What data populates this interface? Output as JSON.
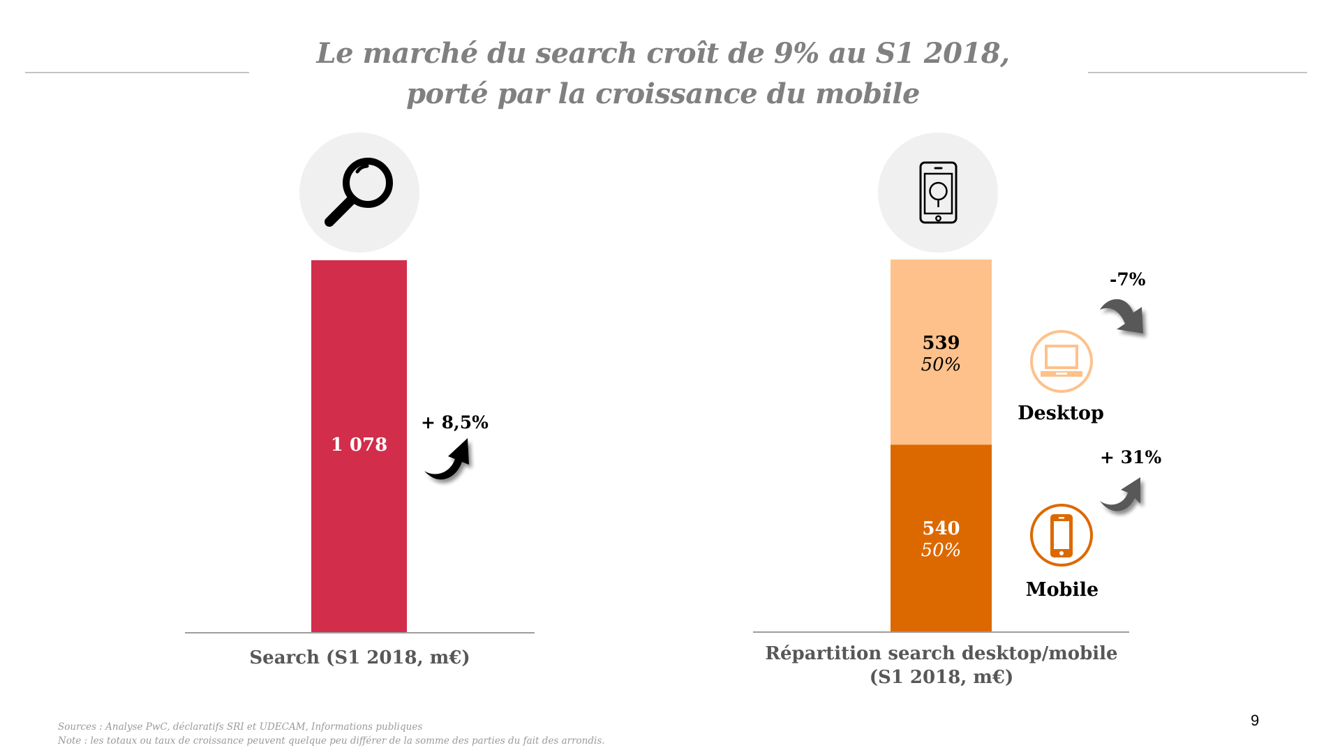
{
  "title": {
    "line1": "Le marché du search croît de 9% au S1 2018,",
    "line2": "porté par la croissance du mobile"
  },
  "colors": {
    "search_bar": "#d22d4b",
    "desktop_bar": "#fec18b",
    "mobile_bar": "#dc6900",
    "arrow_black": "#000000",
    "arrow_gray": "#595959",
    "icon_bg": "#f0f0f0",
    "desktop_icon": "#fec18b",
    "mobile_icon": "#dc6900"
  },
  "icons": {
    "left": "magnifier-icon",
    "right": "smartphone-search-icon",
    "desktop": "laptop-icon",
    "mobile": "smartphone-icon",
    "up_arrow": "curved-arrow-up-icon",
    "down_arrow": "curved-arrow-down-icon"
  },
  "chart_data": [
    {
      "type": "bar",
      "title": "Search (S1 2018, m€)",
      "xlabel": "Search (S1 2018, m€)",
      "ylabel": "",
      "categories": [
        "Search"
      ],
      "values": [
        1078
      ],
      "value_labels": [
        "1 078"
      ],
      "growth": "+ 8,5%",
      "growth_direction": "up",
      "ylim": [
        0,
        1078
      ],
      "grid": false
    },
    {
      "type": "bar",
      "stacked": true,
      "title": "Répartition search desktop/mobile (S1 2018, m€)",
      "xlabel_line1": "Répartition search desktop/mobile",
      "xlabel_line2": "(S1 2018, m€)",
      "ylabel": "",
      "categories": [
        "S1 2018"
      ],
      "series": [
        {
          "name": "Mobile",
          "values": [
            540
          ],
          "value_label": "540",
          "share": "50%",
          "growth": "+ 31%",
          "growth_direction": "up"
        },
        {
          "name": "Desktop",
          "values": [
            539
          ],
          "value_label": "539",
          "share": "50%",
          "growth": "-7%",
          "growth_direction": "down"
        }
      ],
      "ylim": [
        0,
        1079
      ],
      "grid": false
    }
  ],
  "footer": {
    "sources": "Sources : Analyse PwC, déclaratifs SRI et UDECAM, Informations publiques",
    "note": "Note : les totaux ou taux de croissance peuvent quelque peu différer de la somme des parties du fait des arrondis.",
    "page_number": "9"
  }
}
